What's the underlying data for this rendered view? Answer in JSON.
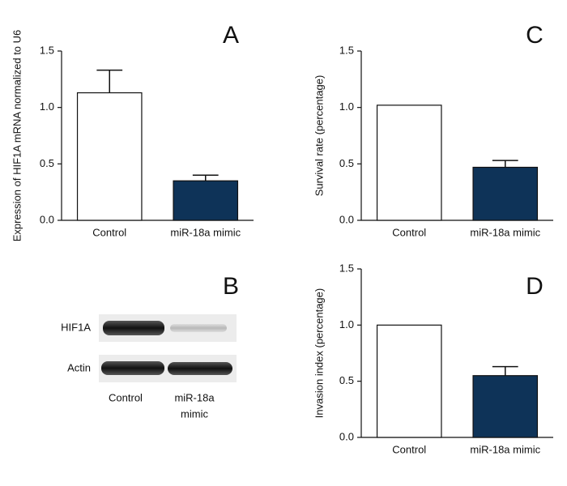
{
  "chart_data": [
    {
      "type": "bar",
      "panel": "A",
      "y_label": "Expression of HIF1A mRNA normalized to U6",
      "categories": [
        "Control",
        "miR-18a mimic"
      ],
      "values": [
        1.13,
        0.35
      ],
      "errors": [
        0.2,
        0.05
      ],
      "colors": [
        "#ffffff",
        "#0e3358"
      ],
      "ylim": [
        0,
        1.5
      ],
      "yticks": [
        {
          "value": 0,
          "label": "0.0"
        },
        {
          "value": 0.5,
          "label": "0.5"
        },
        {
          "value": 1,
          "label": "1.0"
        },
        {
          "value": 1.5,
          "label": "1.5"
        }
      ]
    },
    {
      "type": "blot",
      "panel": "B",
      "rows": [
        "HIF1A",
        "Actin"
      ],
      "lanes": [
        [
          "Control"
        ],
        [
          "miR-18a",
          "mimic"
        ]
      ]
    },
    {
      "type": "bar",
      "panel": "C",
      "y_label": "Survival rate (percentage)",
      "categories": [
        "Control",
        "miR-18a mimic"
      ],
      "values": [
        1.02,
        0.47
      ],
      "errors": [
        null,
        0.06
      ],
      "colors": [
        "#ffffff",
        "#0e3358"
      ],
      "ylim": [
        0,
        1.5
      ],
      "yticks": [
        {
          "value": 0,
          "label": "0.0"
        },
        {
          "value": 0.5,
          "label": "0.5"
        },
        {
          "value": 1,
          "label": "1.0"
        },
        {
          "value": 1.5,
          "label": "1.5"
        }
      ]
    },
    {
      "type": "bar",
      "panel": "D",
      "y_label": "Invasion index (percentage)",
      "categories": [
        "Control",
        "miR-18a mimic"
      ],
      "values": [
        1.0,
        0.55
      ],
      "errors": [
        null,
        0.08
      ],
      "colors": [
        "#ffffff",
        "#0e3358"
      ],
      "ylim": [
        0,
        1.5
      ],
      "yticks": [
        {
          "value": 0,
          "label": "0.0"
        },
        {
          "value": 0.5,
          "label": "0.5"
        },
        {
          "value": 1,
          "label": "1.0"
        },
        {
          "value": 1.5,
          "label": "1.5"
        }
      ]
    }
  ]
}
